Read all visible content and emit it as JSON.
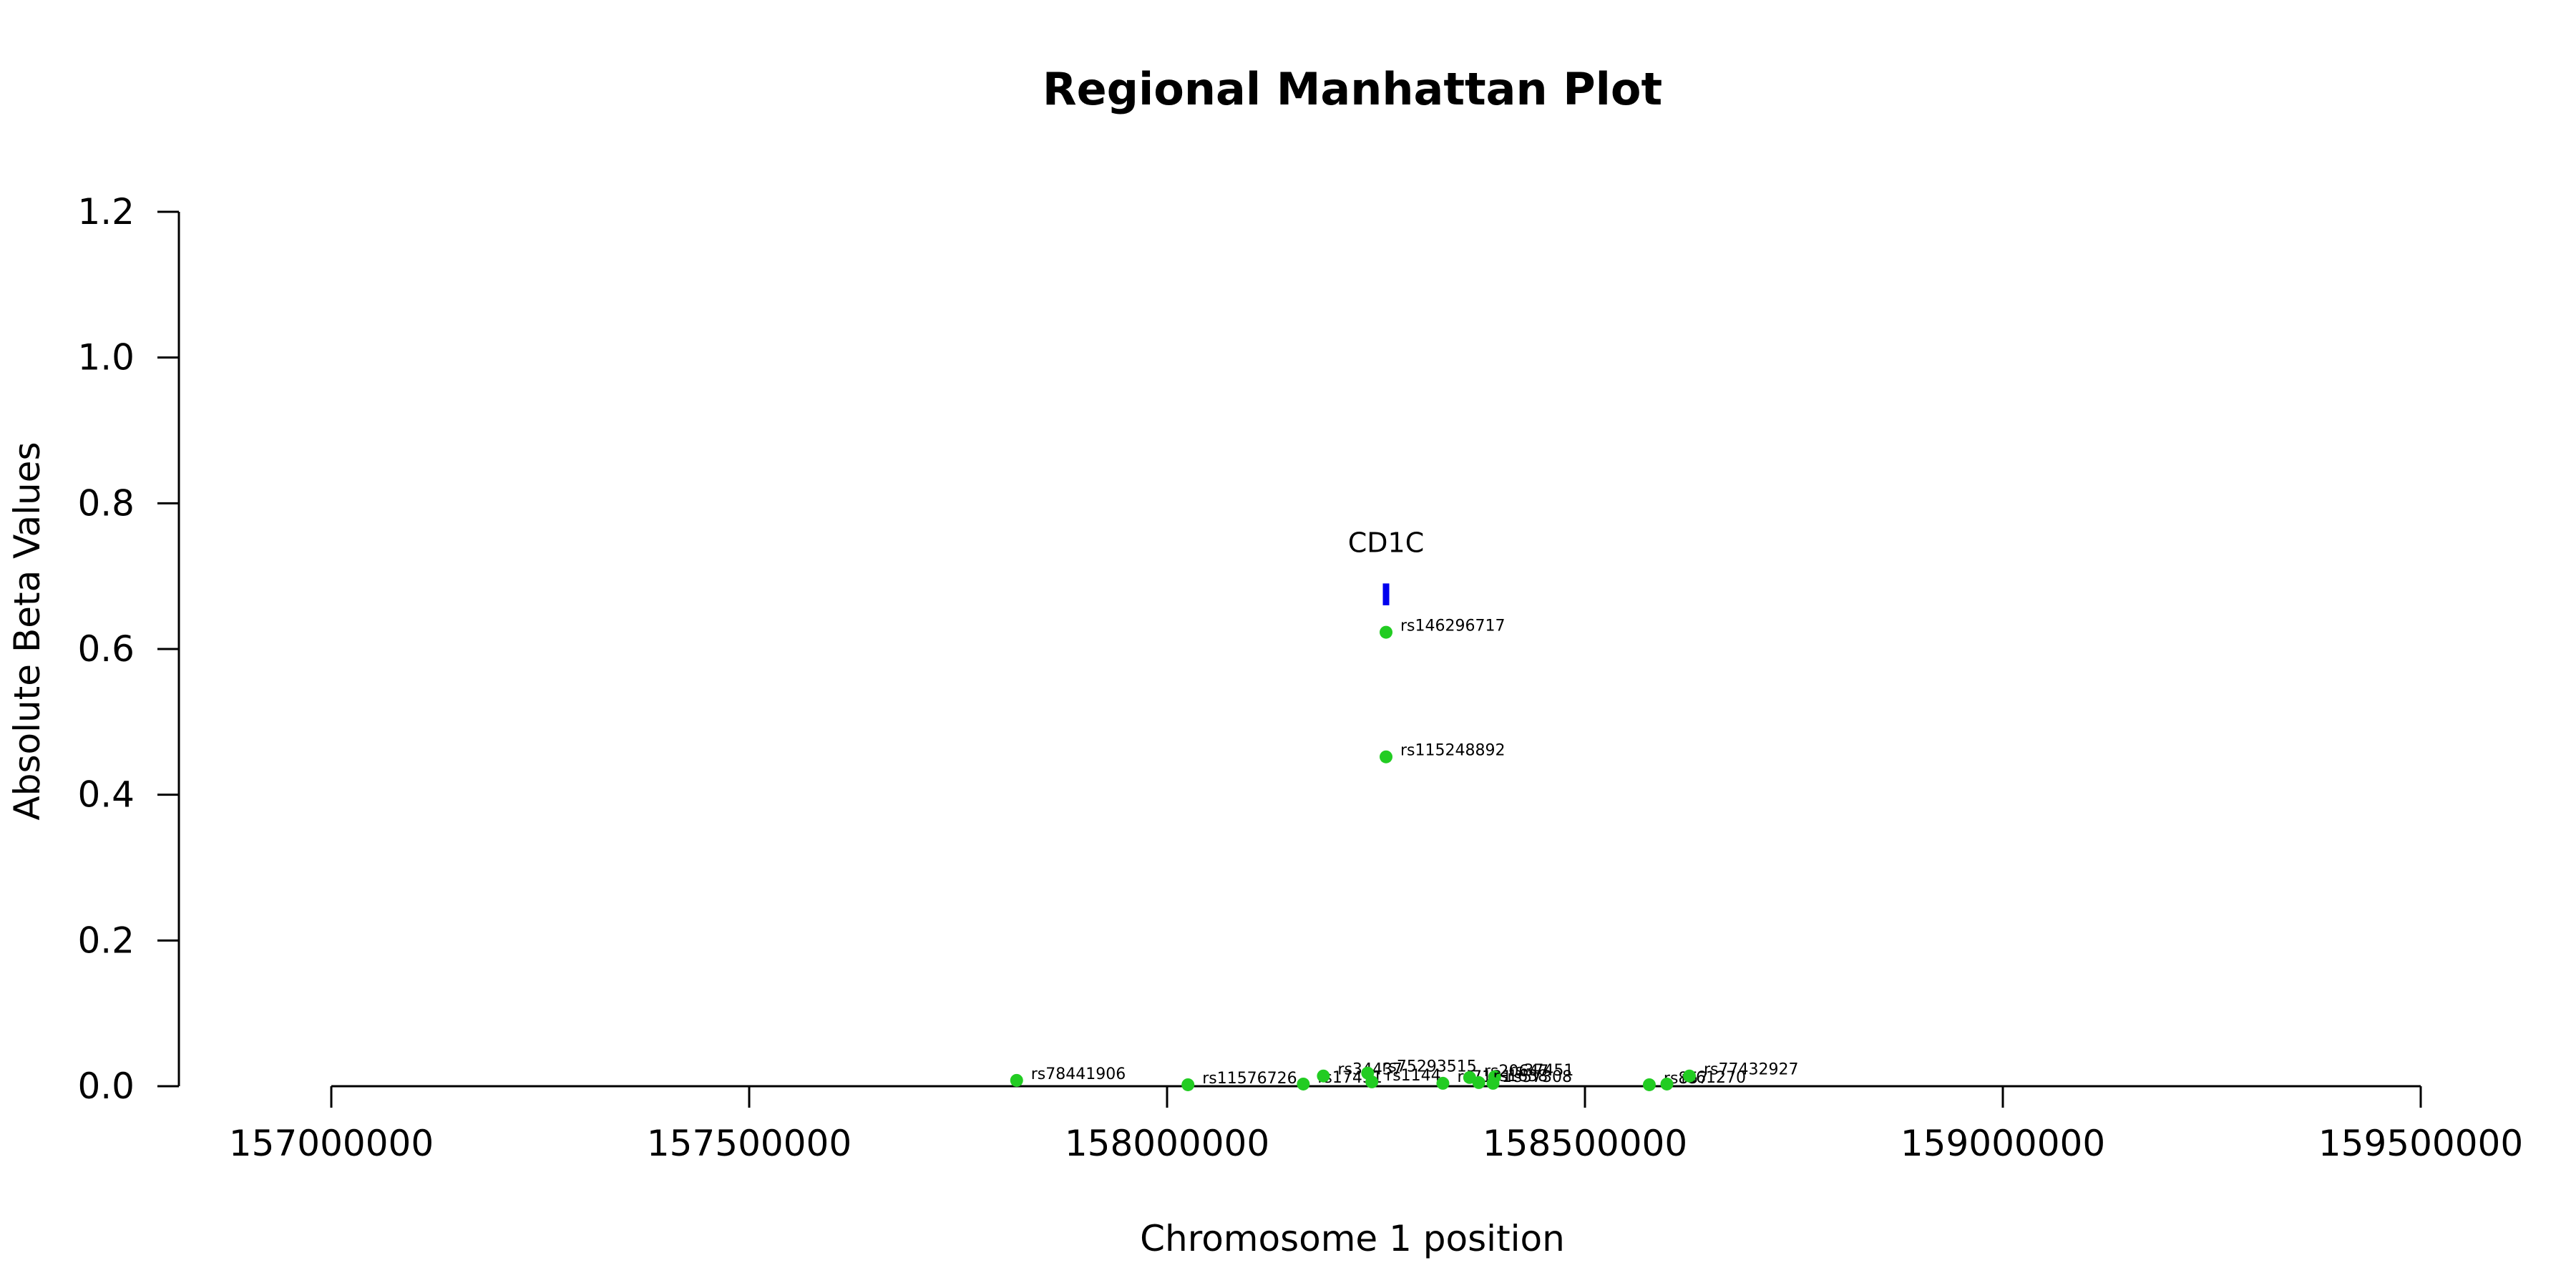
{
  "chart_data": {
    "type": "scatter",
    "title": "Regional Manhattan Plot",
    "xlabel": "Chromosome 1 position",
    "ylabel": "Absolute Beta Values",
    "xlim": [
      156780000,
      159620000
    ],
    "ylim": [
      0,
      1.2
    ],
    "x_ticks": [
      157000000,
      157500000,
      158000000,
      158500000,
      159000000,
      159500000
    ],
    "x_tick_labels": [
      "157000000",
      "157500000",
      "158000000",
      "158500000",
      "159000000",
      "159500000"
    ],
    "y_ticks": [
      0.0,
      0.2,
      0.4,
      0.6,
      0.8,
      1.0,
      1.2
    ],
    "y_tick_labels": [
      "0.0",
      "0.2",
      "0.4",
      "0.6",
      "0.8",
      "1.0",
      "1.2"
    ],
    "point_color": "#22cc22",
    "gene_color": "#0000ee",
    "points": [
      {
        "label": "rs78441906",
        "x": 157820000,
        "y": 0.008
      },
      {
        "label": "rs11576726",
        "x": 158025000,
        "y": 0.002
      },
      {
        "label": "rs17451",
        "x": 158163000,
        "y": 0.003
      },
      {
        "label": "rs34437",
        "x": 158187000,
        "y": 0.014
      },
      {
        "label": "rs75293515",
        "x": 158240000,
        "y": 0.018
      },
      {
        "label": "rs1144",
        "x": 158245000,
        "y": 0.006
      },
      {
        "label": "rs146296717",
        "x": 158262000,
        "y": 0.623
      },
      {
        "label": "rs115248892",
        "x": 158262000,
        "y": 0.452
      },
      {
        "label": "rs7131",
        "x": 158330000,
        "y": 0.004
      },
      {
        "label": "rs20647",
        "x": 158362000,
        "y": 0.012
      },
      {
        "label": "rs37451",
        "x": 158392000,
        "y": 0.013
      },
      {
        "label": "rs1638",
        "x": 158373000,
        "y": 0.005
      },
      {
        "label": "rs57308",
        "x": 158390000,
        "y": 0.004
      },
      {
        "label": "rs857",
        "x": 158577000,
        "y": 0.002
      },
      {
        "label": "rs61270",
        "x": 158598000,
        "y": 0.003
      },
      {
        "label": "rs77432927",
        "x": 158625000,
        "y": 0.014
      }
    ],
    "gene": {
      "name": "CD1C",
      "x": 158262000,
      "y_bottom": 0.66,
      "y_top": 0.69
    }
  }
}
